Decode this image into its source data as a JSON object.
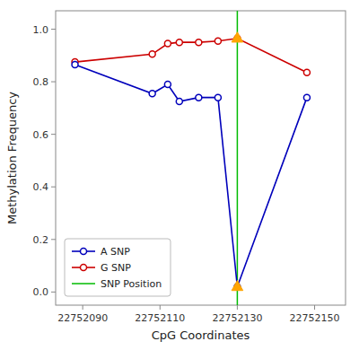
{
  "chart_data": {
    "type": "line",
    "xlabel": "CpG Coordinates",
    "ylabel": "Methylation Frequency",
    "x": [
      22752088,
      22752108,
      22752112,
      22752115,
      22752120,
      22752125,
      22752130,
      22752148
    ],
    "series": [
      {
        "name": "A SNP",
        "color": "#0000BB",
        "marker": "circle",
        "line_style": "solid",
        "values": [
          0.865,
          0.755,
          0.79,
          0.725,
          0.74,
          0.74,
          0.02,
          0.74
        ]
      },
      {
        "name": "G SNP",
        "color": "#CC0000",
        "marker": "circle",
        "line_style": "solid",
        "values": [
          0.875,
          0.905,
          0.945,
          0.95,
          0.95,
          0.955,
          0.965,
          0.835
        ]
      }
    ],
    "vlines": [
      {
        "name": "SNP Position",
        "x": 22752130,
        "color": "#00BB00"
      }
    ],
    "highlight": {
      "x": 22752130,
      "color": "#FFA500",
      "marker": "triangle"
    },
    "xlim": [
      22752083,
      22752158
    ],
    "xticks": [
      22752090,
      22752110,
      22752130,
      22752150
    ],
    "ylim": [
      -0.05,
      1.07
    ],
    "yticks": [
      {
        "value": 0,
        "label": "0.0"
      },
      0.2,
      0.4,
      0.6,
      0.8,
      {
        "value": 1,
        "label": "1.0"
      }
    ],
    "grid": false,
    "legend": "lower left"
  }
}
